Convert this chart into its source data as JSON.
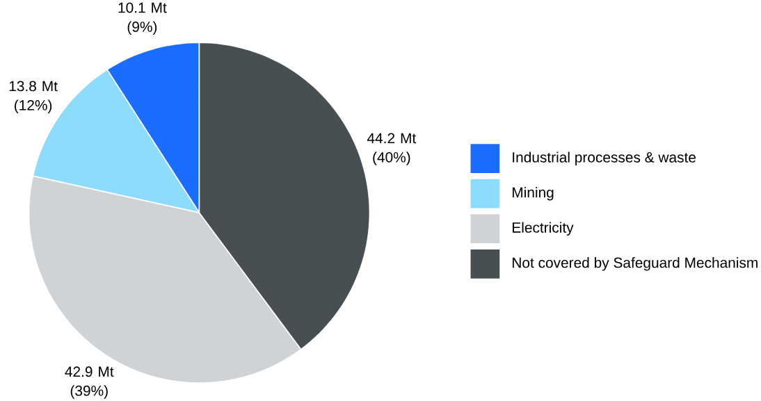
{
  "chart_data": {
    "type": "pie",
    "categories": [
      "Industrial processes & waste",
      "Mining",
      "Electricity",
      "Not covered by Safeguard Mechanism"
    ],
    "values": [
      10.1,
      13.8,
      42.9,
      44.2
    ],
    "value_labels": [
      "10.1 Mt (9%)",
      "13.8 Mt (12%)",
      "42.9 Mt (39%)",
      "44.2 Mt (40%)"
    ],
    "colors": [
      "#1a6dff",
      "#8ddcfc",
      "#d0d3d6",
      "#474f52"
    ],
    "legend": "right"
  }
}
